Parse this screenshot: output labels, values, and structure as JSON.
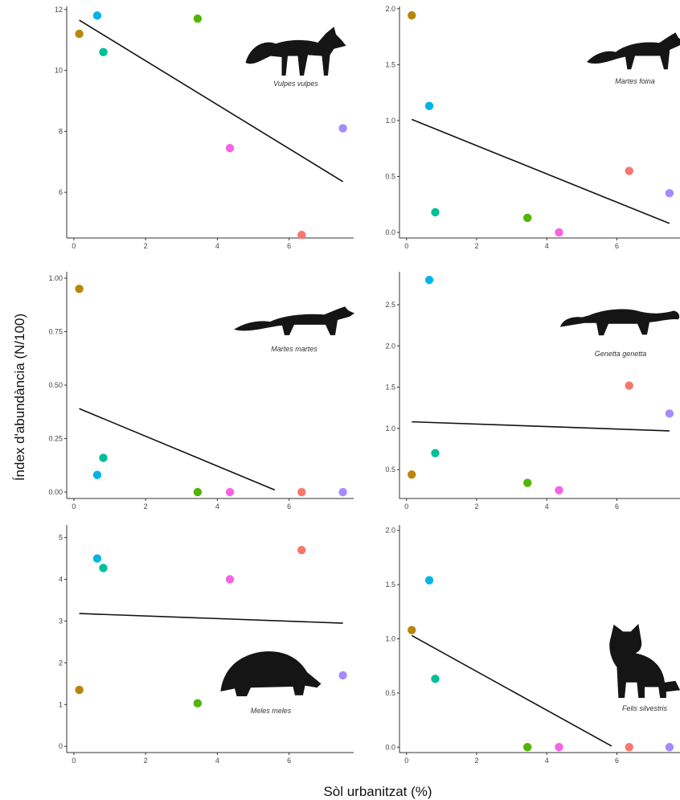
{
  "figure": {
    "ylabel": "Índex d'abundància (N/100)",
    "xlabel": "Sòl urbanitzat (%)"
  },
  "chart_data": [
    {
      "type": "scatter",
      "species": "Vulpes vulpes",
      "xlim": [
        -0.2,
        7.8
      ],
      "ylim": [
        4.5,
        12.1
      ],
      "xticks": [
        0,
        2,
        4,
        6
      ],
      "yticks": [
        6,
        8,
        10,
        12
      ],
      "points": [
        {
          "x": 0.15,
          "y": 11.2,
          "color": "#b8860b"
        },
        {
          "x": 0.65,
          "y": 11.8,
          "color": "#00b4e6"
        },
        {
          "x": 0.82,
          "y": 10.6,
          "color": "#00bf9a"
        },
        {
          "x": 3.45,
          "y": 11.7,
          "color": "#53b400"
        },
        {
          "x": 4.35,
          "y": 7.45,
          "color": "#f564e3"
        },
        {
          "x": 6.35,
          "y": 4.6,
          "color": "#f8766d"
        },
        {
          "x": 7.5,
          "y": 8.1,
          "color": "#a58aff"
        }
      ],
      "trend": {
        "x": [
          0.15,
          7.5
        ],
        "y": [
          11.65,
          6.35
        ]
      }
    },
    {
      "type": "scatter",
      "species": "Martes foina",
      "xlim": [
        -0.2,
        7.8
      ],
      "ylim": [
        -0.05,
        2.02
      ],
      "xticks": [
        0,
        2,
        4,
        6
      ],
      "yticks": [
        "0.0",
        "0.5",
        "1.0",
        "1.5",
        "2.0"
      ],
      "points": [
        {
          "x": 0.15,
          "y": 1.94,
          "color": "#b8860b"
        },
        {
          "x": 0.65,
          "y": 1.13,
          "color": "#00b4e6"
        },
        {
          "x": 0.82,
          "y": 0.18,
          "color": "#00bf9a"
        },
        {
          "x": 3.45,
          "y": 0.13,
          "color": "#53b400"
        },
        {
          "x": 4.35,
          "y": 0.0,
          "color": "#f564e3"
        },
        {
          "x": 6.35,
          "y": 0.55,
          "color": "#f8766d"
        },
        {
          "x": 7.5,
          "y": 0.35,
          "color": "#a58aff"
        }
      ],
      "trend": {
        "x": [
          0.15,
          7.5
        ],
        "y": [
          1.01,
          0.08
        ]
      }
    },
    {
      "type": "scatter",
      "species": "Martes martes",
      "xlim": [
        -0.2,
        7.8
      ],
      "ylim": [
        -0.03,
        1.03
      ],
      "xticks": [
        0,
        2,
        4,
        6
      ],
      "yticks": [
        "0.00",
        "0.25",
        "0.50",
        "0.75",
        "1.00"
      ],
      "points": [
        {
          "x": 0.15,
          "y": 0.95,
          "color": "#b8860b"
        },
        {
          "x": 0.65,
          "y": 0.08,
          "color": "#00b4e6"
        },
        {
          "x": 0.82,
          "y": 0.16,
          "color": "#00bf9a"
        },
        {
          "x": 3.45,
          "y": 0.0,
          "color": "#53b400"
        },
        {
          "x": 4.35,
          "y": 0.0,
          "color": "#f564e3"
        },
        {
          "x": 6.35,
          "y": 0.0,
          "color": "#f8766d"
        },
        {
          "x": 7.5,
          "y": 0.0,
          "color": "#a58aff"
        }
      ],
      "trend": {
        "x": [
          0.15,
          5.6
        ],
        "y": [
          0.39,
          0.01
        ]
      }
    },
    {
      "type": "scatter",
      "species": "Genetta genetta",
      "xlim": [
        -0.2,
        7.8
      ],
      "ylim": [
        0.15,
        2.9
      ],
      "xticks": [
        0,
        2,
        4,
        6
      ],
      "yticks": [
        "0.5",
        "1.0",
        "1.5",
        "2.0",
        "2.5"
      ],
      "points": [
        {
          "x": 0.15,
          "y": 0.44,
          "color": "#b8860b"
        },
        {
          "x": 0.65,
          "y": 2.8,
          "color": "#00b4e6"
        },
        {
          "x": 0.82,
          "y": 0.7,
          "color": "#00bf9a"
        },
        {
          "x": 3.45,
          "y": 0.34,
          "color": "#53b400"
        },
        {
          "x": 4.35,
          "y": 0.25,
          "color": "#f564e3"
        },
        {
          "x": 6.35,
          "y": 1.52,
          "color": "#f8766d"
        },
        {
          "x": 7.5,
          "y": 1.18,
          "color": "#a58aff"
        }
      ],
      "trend": {
        "x": [
          0.15,
          7.5
        ],
        "y": [
          1.08,
          0.97
        ]
      }
    },
    {
      "type": "scatter",
      "species": "Meles meles",
      "xlim": [
        -0.2,
        7.8
      ],
      "ylim": [
        -0.15,
        5.3
      ],
      "xticks": [
        0,
        2,
        4,
        6
      ],
      "yticks": [
        0,
        1,
        2,
        3,
        4,
        5
      ],
      "points": [
        {
          "x": 0.15,
          "y": 1.35,
          "color": "#b8860b"
        },
        {
          "x": 0.65,
          "y": 4.5,
          "color": "#00b4e6"
        },
        {
          "x": 0.82,
          "y": 4.27,
          "color": "#00bf9a"
        },
        {
          "x": 3.45,
          "y": 1.03,
          "color": "#53b400"
        },
        {
          "x": 4.35,
          "y": 4.0,
          "color": "#f564e3"
        },
        {
          "x": 6.35,
          "y": 4.7,
          "color": "#f8766d"
        },
        {
          "x": 7.5,
          "y": 1.7,
          "color": "#a58aff"
        }
      ],
      "trend": {
        "x": [
          0.15,
          7.5
        ],
        "y": [
          3.18,
          2.95
        ]
      }
    },
    {
      "type": "scatter",
      "species": "Felis silvestris",
      "xlim": [
        -0.2,
        7.8
      ],
      "ylim": [
        -0.05,
        2.05
      ],
      "xticks": [
        0,
        2,
        4,
        6
      ],
      "yticks": [
        "0.0",
        "0.5",
        "1.0",
        "1.5",
        "2.0"
      ],
      "points": [
        {
          "x": 0.15,
          "y": 1.08,
          "color": "#b8860b"
        },
        {
          "x": 0.65,
          "y": 1.54,
          "color": "#00b4e6"
        },
        {
          "x": 0.82,
          "y": 0.63,
          "color": "#00bf9a"
        },
        {
          "x": 3.45,
          "y": 0.0,
          "color": "#53b400"
        },
        {
          "x": 4.35,
          "y": 0.0,
          "color": "#f564e3"
        },
        {
          "x": 6.35,
          "y": 0.0,
          "color": "#f8766d"
        },
        {
          "x": 7.5,
          "y": 0.0,
          "color": "#a58aff"
        }
      ],
      "trend": {
        "x": [
          0.15,
          5.85
        ],
        "y": [
          1.03,
          0.01
        ]
      }
    }
  ]
}
